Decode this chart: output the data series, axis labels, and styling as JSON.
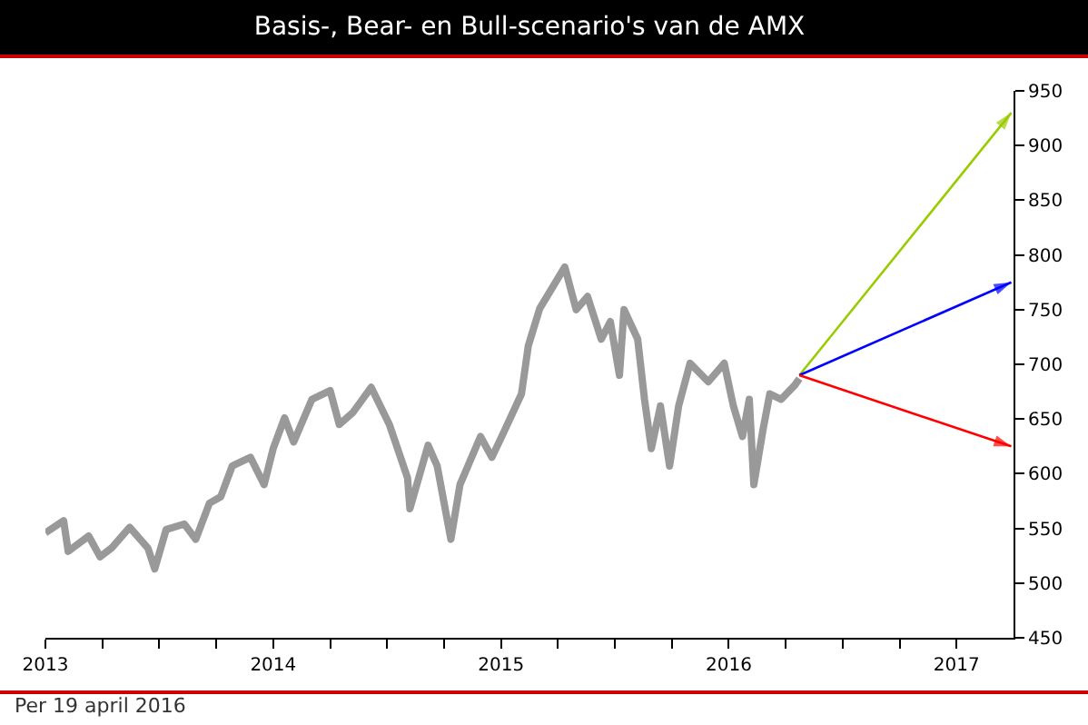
{
  "chart_data": {
    "type": "line",
    "title": "Basis-, Bear- en Bull-scenario's van de AMX",
    "annotations": [
      "Per 19 april 2016"
    ],
    "xlim": [
      2013,
      2017.25
    ],
    "xticks": [
      2013,
      {
        "value": 2013.25,
        "label": null
      },
      {
        "value": 2013.5,
        "label": null
      },
      {
        "value": 2013.75,
        "label": null
      },
      2014,
      {
        "value": 2014.25,
        "label": null
      },
      {
        "value": 2014.5,
        "label": null
      },
      {
        "value": 2014.75,
        "label": null
      },
      2015,
      {
        "value": 2015.25,
        "label": null
      },
      {
        "value": 2015.5,
        "label": null
      },
      {
        "value": 2015.75,
        "label": null
      },
      2016,
      {
        "value": 2016.25,
        "label": null
      },
      {
        "value": 2016.5,
        "label": null
      },
      {
        "value": 2016.75,
        "label": null
      },
      2017
    ],
    "ylim": [
      450,
      950
    ],
    "yticks": [
      450,
      500,
      550,
      600,
      650,
      700,
      750,
      800,
      850,
      900,
      950
    ],
    "marker": "none",
    "series": [
      {
        "color": "#999999",
        "x": [
          2013.0,
          2013.08,
          2013.1,
          2013.19,
          2013.24,
          2013.29,
          2013.37,
          2013.45,
          2013.48,
          2013.53,
          2013.61,
          2013.66,
          2013.72,
          2013.77,
          2013.82,
          2013.9,
          2013.96,
          2014.0,
          2014.05,
          2014.09,
          2014.17,
          2014.25,
          2014.29,
          2014.35,
          2014.43,
          2014.51,
          2014.59,
          2014.6,
          2014.68,
          2014.72,
          2014.78,
          2014.82,
          2014.91,
          2014.96,
          2015.01,
          2015.09,
          2015.12,
          2015.17,
          2015.28,
          2015.33,
          2015.38,
          2015.44,
          2015.48,
          2015.52,
          2015.54,
          2015.6,
          2015.63,
          2015.66,
          2015.7,
          2015.74,
          2015.78,
          2015.83,
          2015.91,
          2015.98,
          2016.02,
          2016.06,
          2016.09,
          2016.11,
          2016.15,
          2016.18,
          2016.23,
          2016.29,
          2016.31
        ],
        "values": [
          546,
          557,
          529,
          543,
          524,
          532,
          551,
          532,
          513,
          549,
          554,
          540,
          573,
          579,
          607,
          615,
          590,
          623,
          651,
          629,
          668,
          676,
          645,
          656,
          679,
          645,
          596,
          568,
          626,
          607,
          540,
          590,
          634,
          615,
          637,
          673,
          717,
          751,
          789,
          750,
          762,
          723,
          739,
          690,
          750,
          723,
          668,
          623,
          662,
          607,
          662,
          701,
          684,
          701,
          662,
          634,
          668,
          590,
          640,
          673,
          668,
          681,
          687
        ]
      },
      {
        "color": "#99cc00",
        "x": [
          2016.31,
          2017.24
        ],
        "values": [
          690,
          930
        ]
      },
      {
        "color": "#0000ff",
        "x": [
          2016.31,
          2017.24
        ],
        "values": [
          690,
          775
        ]
      },
      {
        "color": "#ff0000",
        "x": [
          2016.31,
          2017.24
        ],
        "values": [
          690,
          625
        ]
      }
    ]
  }
}
